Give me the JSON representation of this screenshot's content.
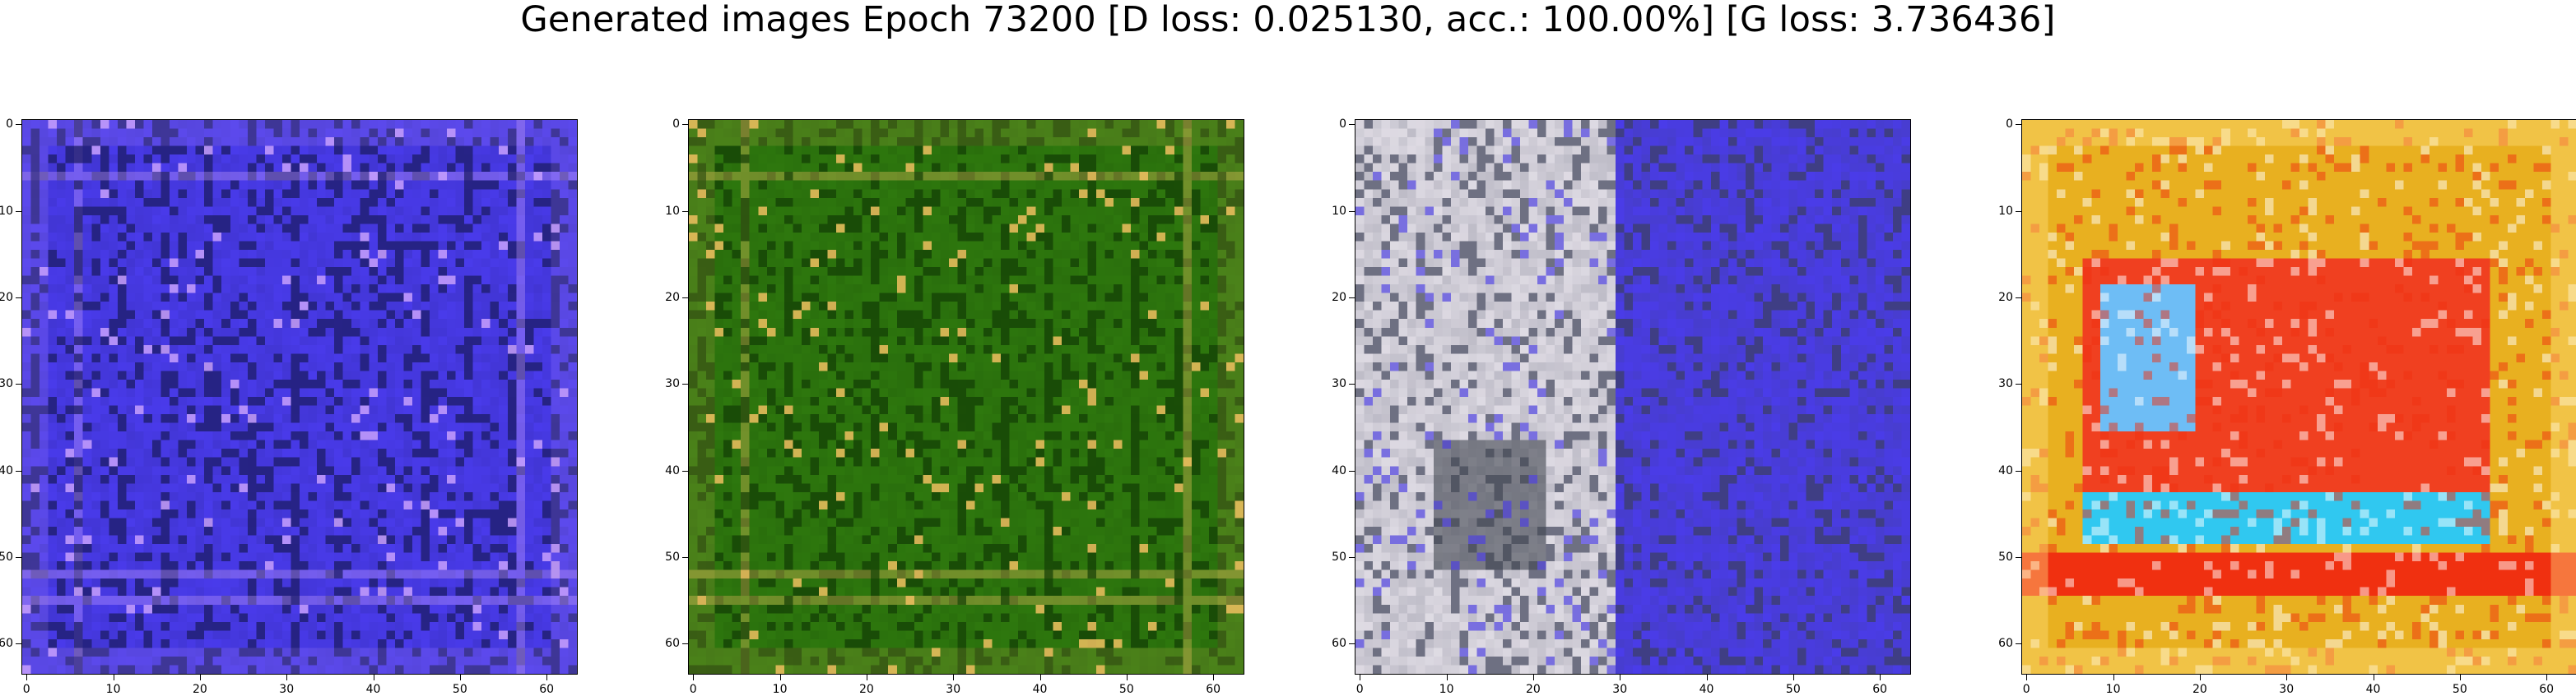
{
  "figure": {
    "title": "Generated images Epoch 73200 [D loss: 0.025130, acc.: 100.00%] [G loss: 3.736436]"
  },
  "axes": {
    "x_ticks": [
      "0",
      "10",
      "20",
      "30",
      "40",
      "50",
      "60"
    ],
    "y_ticks": [
      "0",
      "10",
      "20",
      "30",
      "40",
      "50",
      "60"
    ],
    "xlim": [
      -0.5,
      63.5
    ],
    "ylim": [
      63.5,
      -0.5
    ],
    "image_size": 64
  },
  "panels": [
    {
      "name": "generated-image-1",
      "description_colors": {
        "base": "#4b3cf0",
        "noise": "#1a1a60",
        "highlight": "#c8a0ff"
      }
    },
    {
      "name": "generated-image-2",
      "description_colors": {
        "base": "#2f7a0e",
        "noise": "#123d05",
        "highlight": "#f0c060"
      }
    },
    {
      "name": "generated-image-3",
      "description_colors": {
        "base": "#e8e4ec",
        "noise": "#3a3f55",
        "highlight": "#4b3cf0"
      }
    },
    {
      "name": "generated-image-4",
      "description_colors": {
        "base": "#e8b020",
        "noise": "#f03010",
        "highlight": "#30c8f0"
      }
    }
  ]
}
